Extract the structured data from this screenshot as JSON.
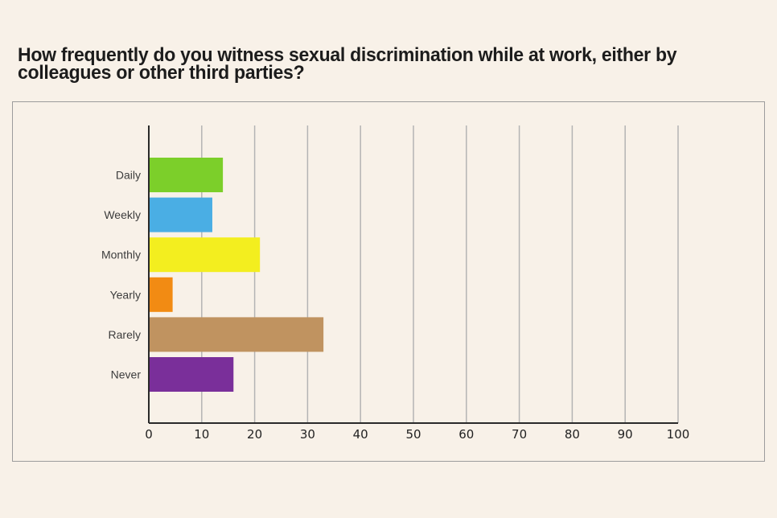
{
  "title": "How frequently do you witness sexual discrimination while at work, either by colleagues or other third parties?",
  "chart_data": {
    "type": "bar",
    "orientation": "horizontal",
    "title": "How frequently do you witness sexual discrimination while at work, either by colleagues or other third parties?",
    "categories": [
      "Daily",
      "Weekly",
      "Monthly",
      "Yearly",
      "Rarely",
      "Never"
    ],
    "values": [
      14,
      12,
      21,
      4.5,
      33,
      16
    ],
    "colors": [
      "#7ccf2a",
      "#4aaee4",
      "#f3ee1f",
      "#f28b13",
      "#c09360",
      "#7a2f9a"
    ],
    "xlim": [
      0,
      100
    ],
    "xticks": [
      "0",
      "10",
      "20",
      "30",
      "40",
      "50",
      "60",
      "70",
      "80",
      "90",
      "100"
    ],
    "grid": true,
    "legend": "none"
  }
}
